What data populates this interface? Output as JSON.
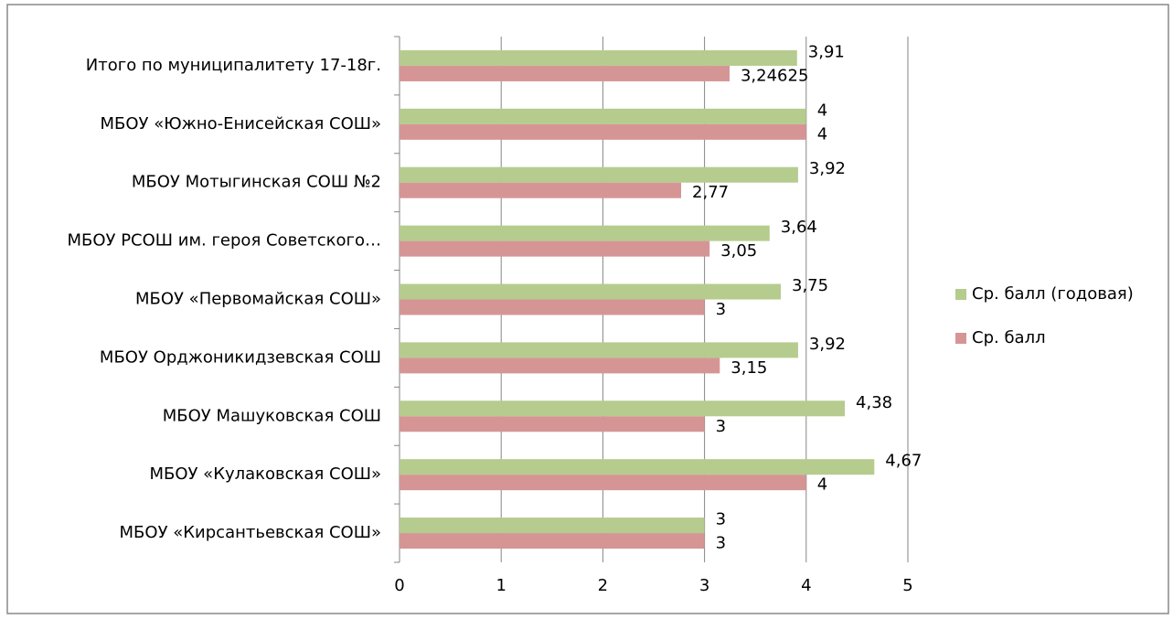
{
  "chart_data": {
    "type": "bar",
    "orientation": "horizontal",
    "categories": [
      "Итого по муниципалитету 17-18г.",
      "МБОУ «Южно-Енисейская СОШ»",
      "МБОУ Мотыгинская СОШ №2",
      "МБОУ РСОШ им. героя Советского…",
      "МБОУ «Первомайская СОШ»",
      "МБОУ Орджоникидзевская СОШ",
      "МБОУ Машуковская СОШ",
      "МБОУ «Кулаковская СОШ»",
      "МБОУ «Кирсантьевская СОШ»"
    ],
    "series": [
      {
        "name": "Ср. балл (годовая)",
        "color": "#b5cc8e",
        "values": [
          3.91,
          4,
          3.92,
          3.64,
          3.75,
          3.92,
          4.38,
          4.67,
          3
        ],
        "value_labels": [
          "3,91",
          "4",
          "3,92",
          "3,64",
          "3,75",
          "3,92",
          "4,38",
          "4,67",
          "3"
        ]
      },
      {
        "name": "Ср. балл",
        "color": "#d69595",
        "values": [
          3.24625,
          4,
          2.77,
          3.05,
          3,
          3.15,
          3,
          4,
          3
        ],
        "value_labels": [
          "3,24625",
          "4",
          "2,77",
          "3,05",
          "3",
          "3,15",
          "3",
          "4",
          "3"
        ]
      }
    ],
    "xlim": [
      0,
      5
    ],
    "xticks": [
      0,
      1,
      2,
      3,
      4,
      5
    ],
    "grid": true,
    "legend": "right"
  }
}
